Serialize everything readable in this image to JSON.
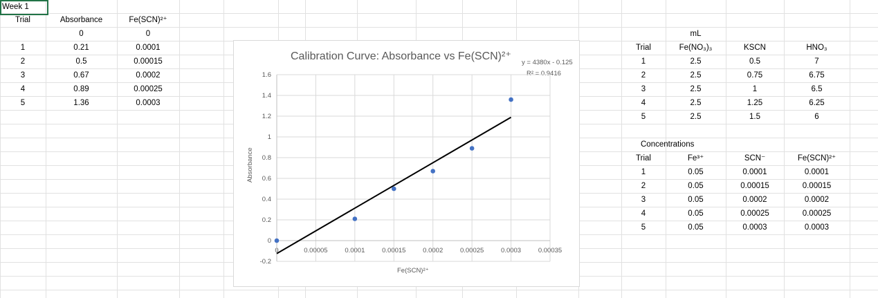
{
  "sheet": {
    "selected_cell": "Week 1",
    "data_table": {
      "headers": [
        "Trial",
        "Absorbance",
        "Fe(SCN)²⁺"
      ],
      "zero_row": [
        "0",
        "0"
      ],
      "rows": [
        [
          "1",
          "0.21",
          "0.0001"
        ],
        [
          "2",
          "0.5",
          "0.00015"
        ],
        [
          "3",
          "0.67",
          "0.0002"
        ],
        [
          "4",
          "0.89",
          "0.00025"
        ],
        [
          "5",
          "1.36",
          "0.0003"
        ]
      ]
    },
    "ml_table": {
      "group_label": "mL",
      "headers": [
        "Trial",
        "Fe(NO₃)₃",
        "KSCN",
        "HNO₃"
      ],
      "rows": [
        [
          "1",
          "2.5",
          "0.5",
          "7"
        ],
        [
          "2",
          "2.5",
          "0.75",
          "6.75"
        ],
        [
          "3",
          "2.5",
          "1",
          "6.5"
        ],
        [
          "4",
          "2.5",
          "1.25",
          "6.25"
        ],
        [
          "5",
          "2.5",
          "1.5",
          "6"
        ]
      ]
    },
    "conc_table": {
      "group_label": "Concentrations",
      "headers": [
        "Trial",
        "Fe³⁺",
        "SCN⁻",
        "Fe(SCN)²⁺"
      ],
      "rows": [
        [
          "1",
          "0.05",
          "0.0001",
          "0.0001"
        ],
        [
          "2",
          "0.05",
          "0.00015",
          "0.00015"
        ],
        [
          "3",
          "0.05",
          "0.0002",
          "0.0002"
        ],
        [
          "4",
          "0.05",
          "0.00025",
          "0.00025"
        ],
        [
          "5",
          "0.05",
          "0.0003",
          "0.0003"
        ]
      ]
    }
  },
  "chart_data": {
    "type": "scatter",
    "title": "Calibration Curve: Absorbance vs Fe(SCN)²⁺",
    "xlabel": "Fe(SCN)²⁺",
    "ylabel": "Absorbance",
    "xlim": [
      0,
      0.00035
    ],
    "ylim": [
      -0.2,
      1.6
    ],
    "x_ticks": [
      "0",
      "0.00005",
      "0.0001",
      "0.00015",
      "0.0002",
      "0.00025",
      "0.0003",
      "0.00035"
    ],
    "y_ticks": [
      "-0.2",
      "0",
      "0.2",
      "0.4",
      "0.6",
      "0.8",
      "1",
      "1.2",
      "1.4",
      "1.6"
    ],
    "grid": true,
    "points": [
      {
        "x": 0,
        "y": 0
      },
      {
        "x": 0.0001,
        "y": 0.21
      },
      {
        "x": 0.00015,
        "y": 0.5
      },
      {
        "x": 0.0002,
        "y": 0.67
      },
      {
        "x": 0.00025,
        "y": 0.89
      },
      {
        "x": 0.0003,
        "y": 1.36
      }
    ],
    "trendline": {
      "slope": 4380,
      "intercept": -0.125,
      "x_range": [
        0,
        0.0003
      ],
      "equation": "y = 4380x - 0.125",
      "r2": "R² = 0.9416"
    },
    "marker_color": "#4472c4",
    "line_color": "#000000"
  }
}
